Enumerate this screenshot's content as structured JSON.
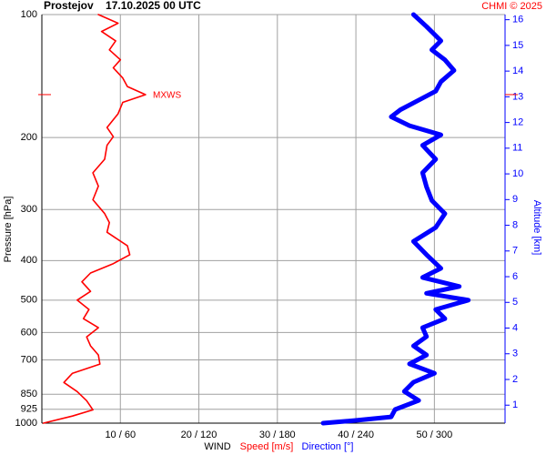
{
  "chart_data": {
    "type": "profile",
    "title": "Prostejov    17.10.2025 00 UTC",
    "credit": "CHMI © 2025",
    "ylabel": "Pressure [hPa]",
    "y2label": "Altitude [km]",
    "xlabel": "WIND",
    "ylim": [
      1000,
      100
    ],
    "log_y": true,
    "yticks": [
      100,
      200,
      300,
      400,
      500,
      600,
      700,
      850,
      925,
      1000
    ],
    "xlim": [
      0,
      59
    ],
    "xticks": [
      {
        "value": 10,
        "label": "10 / 60"
      },
      {
        "value": 20,
        "label": "20 / 120"
      },
      {
        "value": 30,
        "label": "30 / 180"
      },
      {
        "value": 40,
        "label": "40 / 240"
      },
      {
        "value": 50,
        "label": "50 / 300"
      }
    ],
    "x2lim": [
      0,
      354
    ],
    "y2lim": [
      0.3,
      16.2
    ],
    "y2ticks": [
      1,
      2,
      3,
      4,
      5,
      6,
      7,
      8,
      9,
      10,
      11,
      12,
      13,
      14,
      15,
      16
    ],
    "grid": true,
    "annotation": {
      "text": "MXWS",
      "pressure": 157
    },
    "series": [
      {
        "name": "Speed [m/s]",
        "color": "#ff0000",
        "axis": "x",
        "y": [
          100,
          105,
          110,
          116,
          122,
          129,
          135,
          143,
          150,
          157,
          164,
          175,
          189,
          199,
          209,
          226,
          244,
          263,
          284,
          307,
          323,
          341,
          368,
          387,
          407,
          429,
          451,
          476,
          500,
          527,
          555,
          584,
          615,
          647,
          681,
          717,
          755,
          795,
          837,
          881,
          928,
          961,
          1000
        ],
        "values": [
          7.2,
          9.7,
          7.6,
          9.4,
          8.6,
          10,
          9.1,
          10.3,
          10.9,
          13.2,
          10.3,
          9.7,
          8.3,
          9.1,
          8.3,
          8,
          6.5,
          7.2,
          6.5,
          8,
          8.6,
          8.3,
          10.9,
          11.2,
          9.1,
          6.2,
          5.1,
          6.2,
          4.5,
          6,
          5.3,
          7.2,
          5.7,
          6.2,
          7.2,
          7.4,
          3.9,
          2.8,
          4.5,
          5.7,
          6.5,
          3.9,
          0.2
        ]
      },
      {
        "name": "Direction [°]",
        "color": "#0000ff",
        "axis": "x2",
        "y": [
          100,
          107,
          116,
          122,
          129,
          137,
          146,
          154,
          162,
          171,
          178,
          187,
          197,
          209,
          226,
          244,
          264,
          285,
          307,
          332,
          359,
          387,
          418,
          440,
          463,
          481,
          500,
          527,
          555,
          584,
          614,
          647,
          681,
          716,
          755,
          794,
          836,
          880,
          926,
          965,
          985,
          1000
        ],
        "values": [
          284,
          294,
          305,
          298,
          308,
          315,
          305,
          301,
          288,
          274,
          267,
          281,
          305,
          291,
          301,
          291,
          294,
          298,
          308,
          301,
          284,
          294,
          305,
          291,
          319,
          294,
          326,
          301,
          308,
          291,
          294,
          284,
          294,
          281,
          300,
          284,
          277,
          288,
          270,
          267,
          239,
          215
        ]
      }
    ]
  }
}
